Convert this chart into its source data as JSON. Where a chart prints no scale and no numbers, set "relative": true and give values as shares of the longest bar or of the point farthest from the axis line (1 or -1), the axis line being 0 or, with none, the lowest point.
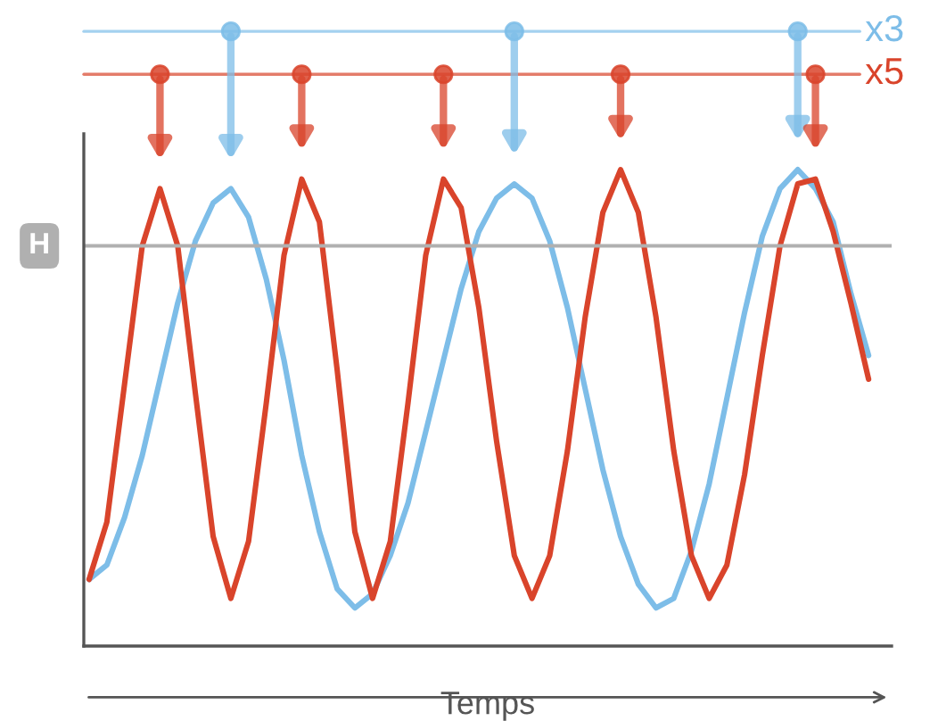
{
  "chart_data": {
    "type": "line",
    "relative": true,
    "xlabel": "Temps",
    "tick_labels": false,
    "grid": false,
    "legend": "top right",
    "line_style": "solid",
    "categories": [
      null,
      null,
      null,
      null,
      null,
      null,
      null,
      null,
      null,
      null,
      null,
      null,
      null,
      null,
      null,
      null,
      null,
      null,
      null,
      null,
      null,
      null,
      null,
      null,
      null,
      null,
      null,
      null,
      null,
      null,
      null,
      null,
      null,
      null,
      null,
      null,
      null,
      null,
      null,
      null,
      null,
      null,
      null,
      null,
      null
    ],
    "ref_lines": [
      {
        "axis": "y",
        "value": 0.84,
        "label": "H",
        "color": "#b0b0b0"
      }
    ],
    "series": [
      {
        "name": "x3",
        "color": "#7dbde8",
        "values": [
          0.14,
          0.17,
          0.27,
          0.4,
          0.56,
          0.72,
          0.85,
          0.93,
          0.96,
          0.9,
          0.77,
          0.6,
          0.4,
          0.24,
          0.12,
          0.08,
          0.11,
          0.19,
          0.3,
          0.45,
          0.6,
          0.75,
          0.87,
          0.94,
          0.97,
          0.94,
          0.85,
          0.71,
          0.54,
          0.37,
          0.23,
          0.13,
          0.08,
          0.1,
          0.2,
          0.34,
          0.52,
          0.7,
          0.86,
          0.96,
          1.0,
          0.96,
          0.89,
          0.74,
          0.61
        ]
      },
      {
        "name": "x5",
        "color": "#d9442b",
        "values": [
          0.14,
          0.26,
          0.55,
          0.84,
          0.96,
          0.84,
          0.53,
          0.23,
          0.1,
          0.22,
          0.51,
          0.82,
          0.98,
          0.89,
          0.58,
          0.24,
          0.1,
          0.22,
          0.51,
          0.82,
          0.98,
          0.92,
          0.71,
          0.43,
          0.19,
          0.1,
          0.19,
          0.41,
          0.69,
          0.91,
          1.0,
          0.91,
          0.69,
          0.41,
          0.19,
          0.1,
          0.17,
          0.36,
          0.61,
          0.84,
          0.97,
          0.98,
          0.87,
          0.72,
          0.56
        ]
      }
    ]
  }
}
